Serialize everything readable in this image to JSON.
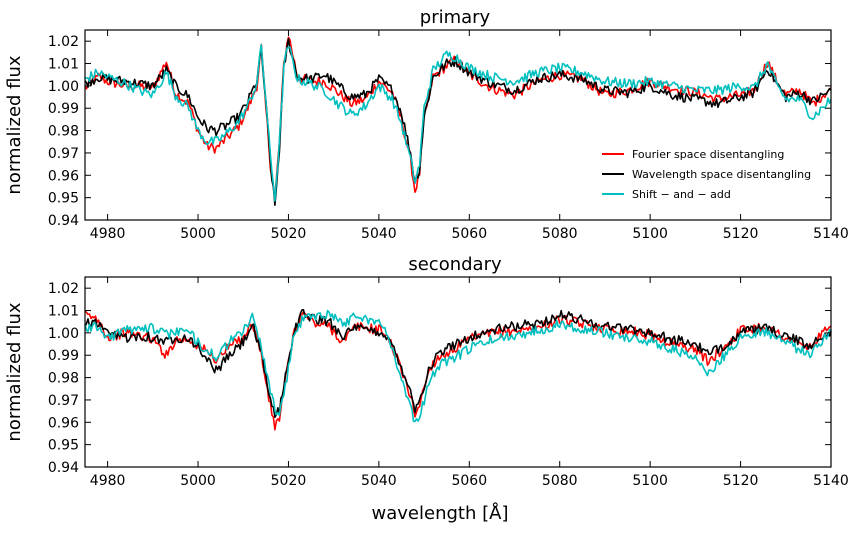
{
  "chart_data": [
    {
      "type": "line",
      "title": "primary",
      "xlabel": "",
      "ylabel": "normalized flux",
      "xlim": [
        4975,
        5140
      ],
      "ylim": [
        0.94,
        1.025
      ],
      "xticks": [
        4980,
        5000,
        5020,
        5040,
        5060,
        5080,
        5100,
        5120,
        5140
      ],
      "yticks": [
        0.94,
        0.95,
        0.96,
        0.97,
        0.98,
        0.99,
        1.0,
        1.01,
        1.02
      ],
      "legend_position": "lower-right",
      "series": [
        {
          "name": "Fourier space disentangling",
          "color": "#ff0000",
          "x": [
            4975,
            4978,
            4980,
            4984,
            4987,
            4990,
            4993,
            4995,
            4998,
            5000,
            5002,
            5004,
            5006,
            5009,
            5011,
            5013,
            5014,
            5015,
            5016,
            5017,
            5018,
            5019,
            5020,
            5022,
            5025,
            5028,
            5031,
            5034,
            5037,
            5040,
            5043,
            5045,
            5047,
            5048,
            5049,
            5050,
            5052,
            5055,
            5057,
            5060,
            5065,
            5070,
            5075,
            5080,
            5085,
            5090,
            5095,
            5100,
            5105,
            5110,
            5115,
            5120,
            5123,
            5126,
            5128,
            5130,
            5133,
            5136,
            5140
          ],
          "y": [
            0.999,
            1.004,
            1.002,
            1.0,
            1.0,
            0.999,
            1.011,
            0.997,
            0.992,
            0.98,
            0.973,
            0.972,
            0.976,
            0.982,
            0.99,
            1.0,
            1.017,
            0.99,
            0.965,
            0.949,
            0.975,
            1.01,
            1.023,
            1.004,
            1.002,
            1.002,
            0.997,
            0.992,
            0.994,
            1.002,
            0.997,
            0.985,
            0.967,
            0.953,
            0.961,
            0.985,
            1.004,
            1.009,
            1.012,
            1.005,
            0.999,
            0.996,
            1.002,
            1.005,
            1.003,
            0.996,
            0.998,
            1.002,
            0.999,
            0.997,
            0.994,
            0.996,
            0.998,
            1.011,
            1.002,
            0.996,
            0.998,
            0.992,
            0.999
          ]
        },
        {
          "name": "Wavelength space disentangling",
          "color": "#000000",
          "x": [
            4975,
            4978,
            4980,
            4984,
            4987,
            4990,
            4993,
            4995,
            4998,
            5000,
            5002,
            5004,
            5006,
            5009,
            5011,
            5013,
            5014,
            5015,
            5016,
            5017,
            5018,
            5019,
            5020,
            5022,
            5025,
            5028,
            5031,
            5034,
            5037,
            5040,
            5043,
            5045,
            5047,
            5048,
            5049,
            5050,
            5052,
            5055,
            5057,
            5060,
            5065,
            5070,
            5075,
            5080,
            5085,
            5090,
            5095,
            5100,
            5105,
            5110,
            5115,
            5120,
            5123,
            5126,
            5128,
            5130,
            5133,
            5136,
            5140
          ],
          "y": [
            1.001,
            1.004,
            1.003,
            1.002,
            1.001,
            1.0,
            1.007,
            1.0,
            0.995,
            0.986,
            0.981,
            0.98,
            0.982,
            0.986,
            0.993,
            1.002,
            1.016,
            0.992,
            0.966,
            0.946,
            0.972,
            1.008,
            1.02,
            1.004,
            1.003,
            1.005,
            1.0,
            0.995,
            0.996,
            1.003,
            0.998,
            0.988,
            0.97,
            0.957,
            0.963,
            0.986,
            1.004,
            1.01,
            1.011,
            1.006,
            1.001,
            0.998,
            1.003,
            1.005,
            1.003,
            0.998,
            0.997,
            1.0,
            0.996,
            0.994,
            0.992,
            0.995,
            0.997,
            1.008,
            1.001,
            0.995,
            0.997,
            0.993,
            0.998
          ]
        },
        {
          "name": "Shift − and − add",
          "color": "#00bfbf",
          "x": [
            4975,
            4978,
            4980,
            4984,
            4987,
            4990,
            4993,
            4995,
            4998,
            5000,
            5002,
            5004,
            5006,
            5009,
            5011,
            5013,
            5014,
            5015,
            5016,
            5017,
            5018,
            5019,
            5020,
            5022,
            5025,
            5028,
            5031,
            5034,
            5037,
            5040,
            5043,
            5045,
            5047,
            5048,
            5049,
            5050,
            5052,
            5055,
            5057,
            5060,
            5065,
            5070,
            5075,
            5080,
            5085,
            5090,
            5095,
            5100,
            5105,
            5110,
            5115,
            5120,
            5123,
            5126,
            5128,
            5130,
            5133,
            5136,
            5140
          ],
          "y": [
            1.003,
            1.006,
            1.004,
            1.001,
            0.998,
            0.996,
            1.006,
            0.996,
            0.99,
            0.98,
            0.975,
            0.975,
            0.978,
            0.984,
            0.991,
            1.001,
            1.018,
            0.994,
            0.968,
            0.95,
            0.974,
            1.009,
            1.018,
            1.003,
            1.001,
            0.998,
            0.992,
            0.987,
            0.991,
            1.0,
            0.994,
            0.983,
            0.967,
            0.957,
            0.965,
            0.99,
            1.007,
            1.014,
            1.013,
            1.008,
            1.004,
            1.002,
            1.006,
            1.008,
            1.006,
            1.002,
            1.001,
            1.002,
            1.0,
            0.998,
            0.998,
            1.0,
            0.999,
            1.01,
            1.0,
            0.994,
            0.994,
            0.986,
            0.994
          ]
        }
      ]
    },
    {
      "type": "line",
      "title": "secondary",
      "xlabel": "wavelength [Å]",
      "ylabel": "normalized flux",
      "xlim": [
        4975,
        5140
      ],
      "ylim": [
        0.94,
        1.025
      ],
      "xticks": [
        4980,
        5000,
        5020,
        5040,
        5060,
        5080,
        5100,
        5120,
        5140
      ],
      "yticks": [
        0.94,
        0.95,
        0.96,
        0.97,
        0.98,
        0.99,
        1.0,
        1.01,
        1.02
      ],
      "legend_position": "none",
      "series": [
        {
          "name": "Fourier space disentangling",
          "color": "#ff0000",
          "x": [
            4975,
            4978,
            4980,
            4984,
            4987,
            4990,
            4993,
            4995,
            4998,
            5001,
            5004,
            5007,
            5010,
            5012,
            5014,
            5016,
            5017,
            5018,
            5019,
            5021,
            5023,
            5026,
            5029,
            5032,
            5035,
            5038,
            5041,
            5043,
            5045,
            5047,
            5048,
            5049,
            5051,
            5053,
            5056,
            5060,
            5065,
            5070,
            5075,
            5080,
            5085,
            5090,
            5095,
            5100,
            5105,
            5110,
            5113,
            5116,
            5120,
            5125,
            5130,
            5135,
            5140
          ],
          "y": [
            1.008,
            1.006,
            0.998,
            1.0,
            0.999,
            0.997,
            0.99,
            0.997,
            0.997,
            0.993,
            0.988,
            0.994,
            0.998,
            1.005,
            0.99,
            0.967,
            0.958,
            0.962,
            0.975,
            0.998,
            1.009,
            1.004,
            1.003,
            0.996,
            1.003,
            1.002,
            1.001,
            0.994,
            0.983,
            0.972,
            0.964,
            0.968,
            0.983,
            0.989,
            0.992,
            0.997,
            1.0,
            1.001,
            1.002,
            1.006,
            1.004,
            1.002,
            1.001,
            0.999,
            0.995,
            0.993,
            0.987,
            0.993,
            1.001,
            1.003,
            0.998,
            0.993,
            1.003
          ]
        },
        {
          "name": "Wavelength space disentangling",
          "color": "#000000",
          "x": [
            4975,
            4978,
            4980,
            4984,
            4987,
            4990,
            4993,
            4995,
            4998,
            5001,
            5004,
            5007,
            5010,
            5012,
            5014,
            5016,
            5017,
            5018,
            5019,
            5021,
            5023,
            5026,
            5029,
            5032,
            5035,
            5038,
            5041,
            5043,
            5045,
            5047,
            5048,
            5049,
            5051,
            5053,
            5056,
            5060,
            5065,
            5070,
            5075,
            5080,
            5085,
            5090,
            5095,
            5100,
            5105,
            5110,
            5113,
            5116,
            5120,
            5125,
            5130,
            5135,
            5140
          ],
          "y": [
            1.005,
            1.004,
            0.999,
            0.998,
            0.999,
            0.998,
            0.996,
            0.998,
            0.998,
            0.991,
            0.983,
            0.99,
            0.996,
            1.004,
            0.99,
            0.97,
            0.964,
            0.965,
            0.977,
            0.999,
            1.009,
            1.006,
            1.005,
            0.999,
            1.002,
            1.001,
            1.0,
            0.994,
            0.985,
            0.974,
            0.966,
            0.97,
            0.983,
            0.99,
            0.994,
            0.998,
            1.001,
            1.003,
            1.004,
            1.008,
            1.006,
            1.003,
            1.002,
            1.0,
            0.997,
            0.995,
            0.99,
            0.994,
            1.0,
            1.002,
            0.999,
            0.994,
            1.001
          ]
        },
        {
          "name": "Shift − and − add",
          "color": "#00bfbf",
          "x": [
            4975,
            4978,
            4980,
            4984,
            4987,
            4990,
            4993,
            4995,
            4998,
            5001,
            5004,
            5007,
            5010,
            5012,
            5014,
            5016,
            5017,
            5018,
            5019,
            5021,
            5023,
            5026,
            5029,
            5032,
            5035,
            5038,
            5041,
            5043,
            5045,
            5047,
            5048,
            5049,
            5051,
            5053,
            5056,
            5060,
            5065,
            5070,
            5075,
            5080,
            5085,
            5090,
            5095,
            5100,
            5105,
            5110,
            5113,
            5116,
            5120,
            5125,
            5130,
            5135,
            5140
          ],
          "y": [
            1.003,
            1.002,
            0.998,
            1.001,
            1.003,
            1.002,
            0.999,
            1.001,
            1.0,
            0.994,
            0.989,
            0.996,
            1.001,
            1.007,
            0.994,
            0.974,
            0.965,
            0.963,
            0.972,
            0.997,
            1.006,
            1.008,
            1.009,
            1.004,
            1.008,
            1.006,
            1.003,
            0.993,
            0.98,
            0.967,
            0.959,
            0.962,
            0.978,
            0.985,
            0.988,
            0.993,
            0.997,
            0.999,
            1.001,
            1.004,
            1.002,
            1.0,
            0.998,
            0.996,
            0.993,
            0.988,
            0.982,
            0.989,
            0.998,
            1.001,
            0.996,
            0.99,
            1.001
          ]
        }
      ]
    }
  ]
}
